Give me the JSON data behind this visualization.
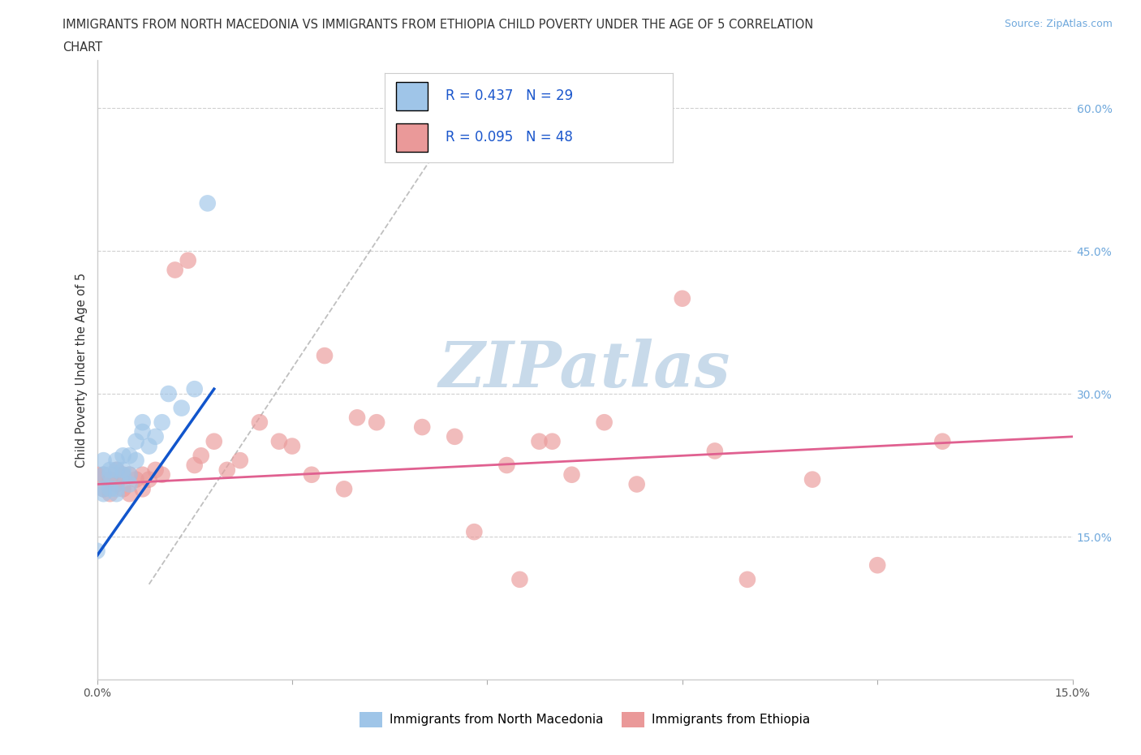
{
  "title_line1": "IMMIGRANTS FROM NORTH MACEDONIA VS IMMIGRANTS FROM ETHIOPIA CHILD POVERTY UNDER THE AGE OF 5 CORRELATION",
  "title_line2": "CHART",
  "source_text": "Source: ZipAtlas.com",
  "ylabel": "Child Poverty Under the Age of 5",
  "legend_label1": "Immigrants from North Macedonia",
  "legend_label2": "Immigrants from Ethiopia",
  "legend_R1": "R = 0.437",
  "legend_N1": "N = 29",
  "legend_R2": "R = 0.095",
  "legend_N2": "N = 48",
  "color_blue": "#9fc5e8",
  "color_pink": "#ea9999",
  "color_blue_line": "#1155cc",
  "color_pink_line": "#e06090",
  "color_dashed": "#b0b0b0",
  "xlim": [
    0.0,
    0.15
  ],
  "ylim": [
    0.0,
    0.65
  ],
  "ytick_positions": [
    0.15,
    0.3,
    0.45,
    0.6
  ],
  "ytick_labels_right": [
    "15.0%",
    "30.0%",
    "45.0%",
    "60.0%"
  ],
  "nm_x": [
    0.0,
    0.001,
    0.001,
    0.001,
    0.001,
    0.002,
    0.002,
    0.002,
    0.003,
    0.003,
    0.003,
    0.003,
    0.004,
    0.004,
    0.004,
    0.005,
    0.005,
    0.005,
    0.006,
    0.006,
    0.007,
    0.007,
    0.008,
    0.009,
    0.01,
    0.011,
    0.013,
    0.015,
    0.017
  ],
  "nm_y": [
    0.135,
    0.195,
    0.2,
    0.215,
    0.23,
    0.2,
    0.215,
    0.22,
    0.195,
    0.2,
    0.22,
    0.23,
    0.215,
    0.22,
    0.235,
    0.205,
    0.215,
    0.235,
    0.23,
    0.25,
    0.26,
    0.27,
    0.245,
    0.255,
    0.27,
    0.3,
    0.285,
    0.305,
    0.5
  ],
  "eth_x": [
    0.0,
    0.001,
    0.001,
    0.002,
    0.002,
    0.003,
    0.003,
    0.004,
    0.004,
    0.005,
    0.005,
    0.006,
    0.007,
    0.007,
    0.008,
    0.009,
    0.01,
    0.012,
    0.014,
    0.015,
    0.016,
    0.018,
    0.02,
    0.022,
    0.025,
    0.028,
    0.03,
    0.033,
    0.035,
    0.038,
    0.04,
    0.043,
    0.05,
    0.055,
    0.058,
    0.063,
    0.065,
    0.068,
    0.07,
    0.073,
    0.078,
    0.083,
    0.09,
    0.095,
    0.1,
    0.11,
    0.12,
    0.13
  ],
  "eth_y": [
    0.215,
    0.2,
    0.215,
    0.195,
    0.21,
    0.205,
    0.22,
    0.2,
    0.215,
    0.195,
    0.215,
    0.21,
    0.2,
    0.215,
    0.21,
    0.22,
    0.215,
    0.43,
    0.44,
    0.225,
    0.235,
    0.25,
    0.22,
    0.23,
    0.27,
    0.25,
    0.245,
    0.215,
    0.34,
    0.2,
    0.275,
    0.27,
    0.265,
    0.255,
    0.155,
    0.225,
    0.105,
    0.25,
    0.25,
    0.215,
    0.27,
    0.205,
    0.4,
    0.24,
    0.105,
    0.21,
    0.12,
    0.25
  ],
  "watermark_text": "ZIPatlas",
  "watermark_color": "#c8daea",
  "background_color": "#ffffff"
}
